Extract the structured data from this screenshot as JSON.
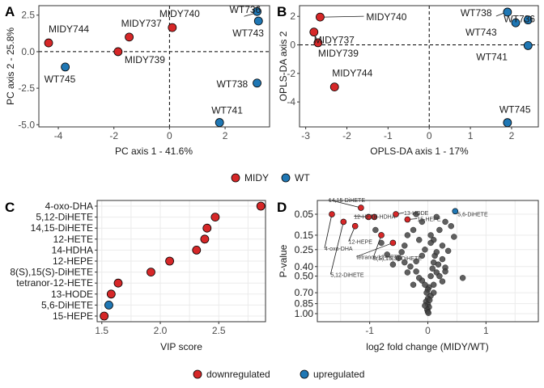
{
  "colors": {
    "midy": "#d62728",
    "wt": "#1f77b4",
    "down": "#d62728",
    "up": "#1f77b4",
    "grey": "#444444"
  },
  "legend1": {
    "items": [
      {
        "label": "MIDY",
        "color": "#d62728"
      },
      {
        "label": "WT",
        "color": "#1f77b4"
      }
    ]
  },
  "legend2": {
    "items": [
      {
        "label": "downregulated",
        "color": "#d62728"
      },
      {
        "label": "upregulated",
        "color": "#1f77b4"
      }
    ]
  },
  "chart_data": [
    {
      "id": "A",
      "type": "scatter",
      "tag": "A",
      "xlabel": "PC axis 1 - 41.6%",
      "ylabel": "PC axis 2 - 25.8%",
      "xlim": [
        -4.7,
        3.6
      ],
      "ylim": [
        -5.15,
        3.15
      ],
      "xticks": [
        -4,
        -2,
        0,
        2
      ],
      "yticks": [
        -5.0,
        -2.5,
        0.0,
        2.5
      ],
      "ytick_labels": [
        "-5.0",
        "-2.5",
        "0.0",
        "2.5"
      ],
      "points": [
        {
          "label": "MIDY744",
          "x": -4.35,
          "y": 0.6,
          "group": "MIDY"
        },
        {
          "label": "MIDY737",
          "x": -1.45,
          "y": 1.0,
          "group": "MIDY"
        },
        {
          "label": "MIDY739",
          "x": -1.85,
          "y": 0.0,
          "group": "MIDY"
        },
        {
          "label": "MIDY740",
          "x": 0.1,
          "y": 1.65,
          "group": "MIDY"
        },
        {
          "label": "WT745",
          "x": -3.75,
          "y": -1.05,
          "group": "WT"
        },
        {
          "label": "WT736",
          "x": 3.15,
          "y": 2.75,
          "group": "WT"
        },
        {
          "label": "WT743",
          "x": 3.2,
          "y": 2.1,
          "group": "WT"
        },
        {
          "label": "WT738",
          "x": 3.15,
          "y": -2.15,
          "group": "WT"
        },
        {
          "label": "WT741",
          "x": 1.8,
          "y": -4.85,
          "group": "WT"
        }
      ]
    },
    {
      "id": "B",
      "type": "scatter",
      "tag": "B",
      "xlabel": "OPLS-DA axis 1 - 17%",
      "ylabel": "OPLS-DA axis 2",
      "xlim": [
        -3.15,
        2.65
      ],
      "ylim": [
        -5.75,
        2.75
      ],
      "xticks": [
        -3,
        -2,
        -1,
        0,
        1,
        2
      ],
      "yticks": [
        -4,
        -2,
        0,
        2
      ],
      "ytick_labels": [
        "-4",
        "-2",
        "0",
        "2"
      ],
      "points": [
        {
          "label": "MIDY740",
          "x": -2.65,
          "y": 1.95,
          "group": "MIDY"
        },
        {
          "label": "MIDY737",
          "x": -2.8,
          "y": 0.9,
          "group": "MIDY"
        },
        {
          "label": "MIDY739",
          "x": -2.7,
          "y": 0.15,
          "group": "MIDY"
        },
        {
          "label": "MIDY744",
          "x": -2.3,
          "y": -2.95,
          "group": "MIDY"
        },
        {
          "label": "WT738",
          "x": 1.9,
          "y": 2.3,
          "group": "WT"
        },
        {
          "label": "WT736",
          "x": 2.4,
          "y": 1.75,
          "group": "WT"
        },
        {
          "label": "WT743",
          "x": 2.1,
          "y": 1.55,
          "group": "WT"
        },
        {
          "label": "WT741",
          "x": 2.4,
          "y": -0.05,
          "group": "WT"
        },
        {
          "label": "WT745",
          "x": 1.9,
          "y": -5.45,
          "group": "WT"
        }
      ]
    },
    {
      "id": "C",
      "type": "scatter",
      "tag": "C",
      "xlabel": "VIP score",
      "ylabel": "",
      "xlim": [
        1.46,
        2.9
      ],
      "xticks": [
        1.5,
        2.0,
        2.5
      ],
      "xtick_labels": [
        "1.5",
        "2.0",
        "2.5"
      ],
      "categories": [
        "4-oxo-DHA",
        "5,12-DiHETE",
        "14,15-DiHETE",
        "12-HETE",
        "14-HDHA",
        "12-HEPE",
        "8(S),15(S)-DiHETE",
        "tetranor-12-HETE",
        "13-HODE",
        "5,6-DiHETE",
        "15-HEPE"
      ],
      "values": [
        2.86,
        2.47,
        2.4,
        2.38,
        2.31,
        2.08,
        1.92,
        1.64,
        1.58,
        1.56,
        1.52
      ],
      "regulation": [
        "down",
        "down",
        "down",
        "down",
        "down",
        "down",
        "down",
        "down",
        "down",
        "up",
        "down"
      ]
    },
    {
      "id": "D",
      "type": "scatter",
      "tag": "D",
      "xlabel": "log2 fold change (MIDY/WT)",
      "ylabel": "P-value",
      "xlim": [
        -1.9,
        1.9
      ],
      "ylim": [
        0.02,
        1.02
      ],
      "xticks": [
        -1,
        0,
        1
      ],
      "yticks": [
        0.05,
        0.15,
        0.25,
        0.4,
        0.5,
        0.7,
        0.85,
        1.0
      ],
      "ytick_labels": [
        "0.05",
        "0.15",
        "0.25",
        "0.40",
        "0.50",
        "0.70",
        "0.85",
        "1.00"
      ],
      "highlighted": [
        {
          "label": "4-oxo-DHA",
          "x": -1.65,
          "y": 0.05,
          "regulation": "down"
        },
        {
          "label": "5,12-DiHETE",
          "x": -1.45,
          "y": 0.08,
          "regulation": "down"
        },
        {
          "label": "14,15-DiHETE",
          "x": -1.15,
          "y": 0.03,
          "regulation": "down"
        },
        {
          "label": "12-HETE",
          "x": -1.02,
          "y": 0.06,
          "regulation": "down"
        },
        {
          "label": "14-HDHA",
          "x": -0.92,
          "y": 0.06,
          "regulation": "down"
        },
        {
          "label": "12-HEPE",
          "x": -1.25,
          "y": 0.1,
          "regulation": "down"
        },
        {
          "label": "13-HODE",
          "x": -0.55,
          "y": 0.05,
          "regulation": "down"
        },
        {
          "label": "tetranor-12-HETE",
          "x": -0.6,
          "y": 0.2,
          "regulation": "down"
        },
        {
          "label": "8(S),15(S)-DiHETE",
          "x": -0.8,
          "y": 0.15,
          "regulation": "down"
        },
        {
          "label": "15-HEPE",
          "x": -0.35,
          "y": 0.07,
          "regulation": "down"
        },
        {
          "label": "5,6-DiHETE",
          "x": 0.47,
          "y": 0.04,
          "regulation": "up"
        }
      ],
      "other_points": [
        [
          0.3,
          0.08
        ],
        [
          0.4,
          0.1
        ],
        [
          0.45,
          0.16
        ],
        [
          0.2,
          0.12
        ],
        [
          0.15,
          0.06
        ],
        [
          0.1,
          0.18
        ],
        [
          0.05,
          0.2
        ],
        [
          0.25,
          0.22
        ],
        [
          0.35,
          0.26
        ],
        [
          0.12,
          0.3
        ],
        [
          0.25,
          0.33
        ],
        [
          0.1,
          0.36
        ],
        [
          0.18,
          0.38
        ],
        [
          0.3,
          0.41
        ],
        [
          0.08,
          0.42
        ],
        [
          0.15,
          0.46
        ],
        [
          0.05,
          0.5
        ],
        [
          0.25,
          0.56
        ],
        [
          0.1,
          0.6
        ],
        [
          0.02,
          0.63
        ],
        [
          0.0,
          0.66
        ],
        [
          -0.02,
          0.7
        ],
        [
          0.05,
          0.74
        ],
        [
          0.0,
          0.78
        ],
        [
          -0.03,
          0.82
        ],
        [
          0.0,
          0.86
        ],
        [
          0.02,
          0.9
        ],
        [
          -0.01,
          0.94
        ],
        [
          0.0,
          0.97
        ],
        [
          0.01,
          0.99
        ],
        [
          -0.05,
          0.88
        ],
        [
          0.03,
          0.8
        ],
        [
          0.6,
          0.52
        ],
        [
          0.3,
          0.45
        ],
        [
          0.2,
          0.5
        ],
        [
          -0.1,
          0.3
        ],
        [
          -0.2,
          0.35
        ],
        [
          -0.05,
          0.25
        ],
        [
          -0.15,
          0.18
        ],
        [
          -0.25,
          0.12
        ],
        [
          -0.35,
          0.15
        ],
        [
          -0.4,
          0.22
        ],
        [
          -0.45,
          0.27
        ],
        [
          -0.5,
          0.32
        ],
        [
          -0.3,
          0.4
        ],
        [
          -0.2,
          0.45
        ],
        [
          -0.1,
          0.55
        ],
        [
          -0.05,
          0.6
        ],
        [
          -0.15,
          0.52
        ],
        [
          -0.6,
          0.38
        ],
        [
          -0.7,
          0.29
        ],
        [
          -0.8,
          0.2
        ],
        [
          -0.9,
          0.12
        ],
        [
          -0.1,
          0.08
        ],
        [
          -0.2,
          0.05
        ],
        [
          0.05,
          0.15
        ],
        [
          0.15,
          0.27
        ],
        [
          -0.35,
          0.46
        ],
        [
          -0.4,
          0.36
        ],
        [
          -0.25,
          0.6
        ],
        [
          0.1,
          0.7
        ]
      ]
    }
  ]
}
